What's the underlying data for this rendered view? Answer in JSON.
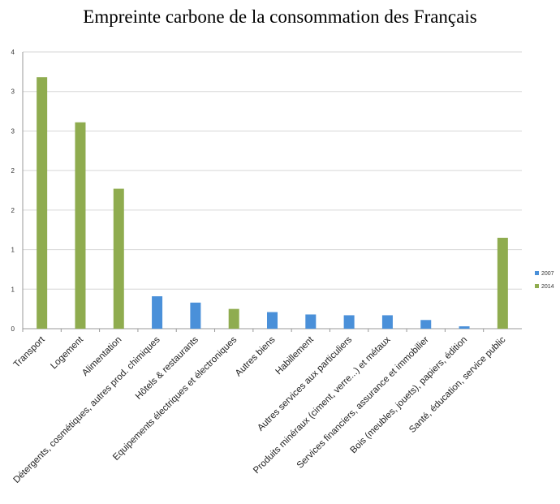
{
  "chart_data": {
    "type": "bar",
    "title": "Empreinte carbone de la consommation des Français",
    "xlabel": "",
    "ylabel": "",
    "y_tick_labels": [
      "0",
      "1",
      "1",
      "2",
      "2",
      "3",
      "3",
      "4"
    ],
    "ylim": [
      0,
      3.5
    ],
    "grid": true,
    "legend_position": "right",
    "categories": [
      "Transport",
      "Logement",
      "Alimentation",
      "Détergents, cosmétiques, autres prod. chimiques",
      "Hôtels & restaurants",
      "Equipements électriques et électroniques",
      "Autres biens",
      "Habillement",
      "Autres services aux particuliers",
      "Produits minéraux (ciment, verre...) et métaux",
      "Services financiers, assurance et immobilier",
      "Bois (meubles, jouets), papiers, édition",
      "Santé, éducation, service public"
    ],
    "series": [
      {
        "name": "2007",
        "color": "#4a90d9",
        "values": [
          null,
          null,
          null,
          0.41,
          0.33,
          null,
          0.21,
          0.18,
          0.17,
          0.17,
          0.11,
          0.03,
          null
        ]
      },
      {
        "name": "2014",
        "color": "#8fac4f",
        "values": [
          3.18,
          2.61,
          1.77,
          null,
          null,
          0.25,
          null,
          null,
          null,
          null,
          null,
          null,
          1.15
        ]
      }
    ]
  }
}
